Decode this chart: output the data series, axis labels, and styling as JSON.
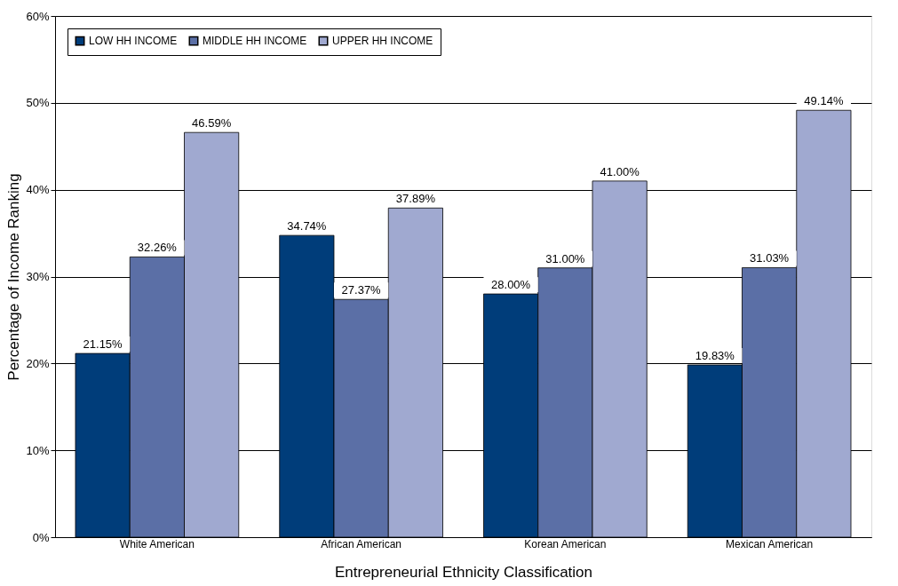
{
  "chart_data": {
    "type": "bar",
    "xlabel": "Entrepreneurial Ethnicity Classification",
    "ylabel": "Percentage of Income Ranking",
    "categories": [
      "White American",
      "African American",
      "Korean American",
      "Mexican American"
    ],
    "series": [
      {
        "name": "LOW HH INCOME",
        "color": "#003d7a",
        "values": [
          21.15,
          34.74,
          28.0,
          19.83
        ],
        "value_labels": [
          "21.15%",
          "34.74%",
          "28.00%",
          "19.83%"
        ]
      },
      {
        "name": "MIDDLE HH INCOME",
        "color": "#5b6fa6",
        "values": [
          32.26,
          27.37,
          31.0,
          31.03
        ],
        "value_labels": [
          "32.26%",
          "27.37%",
          "31.00%",
          "31.03%"
        ]
      },
      {
        "name": "UPPER HH INCOME",
        "color": "#a0a9d0",
        "values": [
          46.59,
          37.89,
          41.0,
          49.14
        ],
        "value_labels": [
          "46.59%",
          "37.89%",
          "41.00%",
          "49.14%"
        ]
      }
    ],
    "ylim": [
      0,
      60
    ],
    "yticks": [
      {
        "value": 0,
        "label": "0%"
      },
      {
        "value": 10,
        "label": "10%"
      },
      {
        "value": 20,
        "label": "20%"
      },
      {
        "value": 30,
        "label": "30%"
      },
      {
        "value": 40,
        "label": "40%"
      },
      {
        "value": 50,
        "label": "50%"
      },
      {
        "value": 60,
        "label": "60%"
      }
    ],
    "grid": "y",
    "legend": "top left"
  }
}
